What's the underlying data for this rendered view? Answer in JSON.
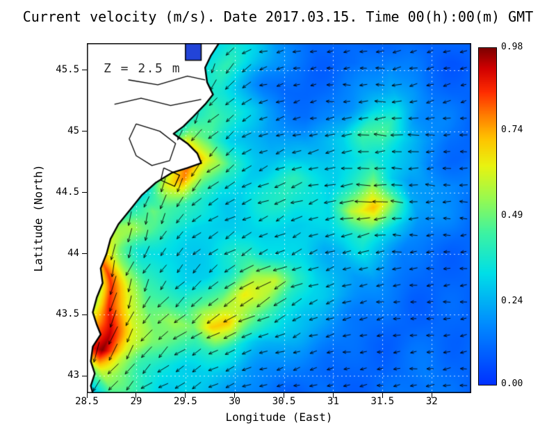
{
  "chart_data": {
    "type": "heatmap",
    "overlay": "quiver",
    "title": "Current velocity (m/s). Date 2017.03.15. Time 00(h):00(m) GMT",
    "annotation": "Z = 2.5 m",
    "xlabel": "Longitude (East)",
    "ylabel": "Latitude (North)",
    "xlim": [
      28.5,
      32.4
    ],
    "ylim": [
      42.86,
      45.72
    ],
    "grid": true,
    "grid_style": {
      "color": "#ffffff",
      "dash": [
        2,
        4
      ],
      "opacity": 0.75
    },
    "x_ticks": [
      28.5,
      29,
      29.5,
      30,
      30.5,
      31,
      31.5,
      32
    ],
    "x_tick_labels": [
      "28.5",
      "29",
      "29.5",
      "30",
      "30.5",
      "31",
      "31.5",
      "32"
    ],
    "y_ticks": [
      43,
      43.5,
      44,
      44.5,
      45,
      45.5
    ],
    "y_tick_labels": [
      "43",
      "43.5",
      "44",
      "44.5",
      "45",
      "45.5"
    ],
    "colorbar": {
      "min": 0.0,
      "max": 0.98,
      "tick_values": [
        0.0,
        0.24,
        0.49,
        0.74,
        0.98
      ],
      "tick_labels": [
        "0.00",
        "0.24",
        "0.49",
        "0.74",
        "0.98"
      ],
      "position": "right"
    },
    "colormap_stops": [
      [
        0.0,
        "#0032ff"
      ],
      [
        0.18,
        "#008cff"
      ],
      [
        0.33,
        "#00dfe8"
      ],
      [
        0.45,
        "#3df3a3"
      ],
      [
        0.55,
        "#96fa52"
      ],
      [
        0.65,
        "#e9f411"
      ],
      [
        0.73,
        "#ffc400"
      ],
      [
        0.8,
        "#ff7e00"
      ],
      [
        0.87,
        "#ff2d00"
      ],
      [
        0.94,
        "#d10000"
      ],
      [
        1.0,
        "#7f0000"
      ]
    ],
    "speed_grid": {
      "units": "m/s",
      "lon_min": 28.5,
      "lon_max": 32.4,
      "lat_top": 45.72,
      "lat_bottom": 42.86,
      "cols": 20,
      "rows": 16,
      "values": [
        [
          0.1,
          0.1,
          0.1,
          0.1,
          0.1,
          0.2,
          0.3,
          0.35,
          0.3,
          0.2,
          0.15,
          0.1,
          0.1,
          0.12,
          0.1,
          0.1,
          0.12,
          0.1,
          0.1,
          0.1
        ],
        [
          0.1,
          0.1,
          0.1,
          0.1,
          0.1,
          0.25,
          0.35,
          0.4,
          0.3,
          0.2,
          0.12,
          0.1,
          0.1,
          0.1,
          0.15,
          0.2,
          0.15,
          0.1,
          0.08,
          0.08
        ],
        [
          0.1,
          0.1,
          0.1,
          0.1,
          0.15,
          0.3,
          0.4,
          0.35,
          0.25,
          0.15,
          0.1,
          0.1,
          0.12,
          0.15,
          0.2,
          0.25,
          0.2,
          0.12,
          0.1,
          0.1
        ],
        [
          0.1,
          0.1,
          0.1,
          0.1,
          0.2,
          0.35,
          0.45,
          0.4,
          0.3,
          0.2,
          0.15,
          0.12,
          0.15,
          0.2,
          0.3,
          0.35,
          0.2,
          0.15,
          0.12,
          0.1
        ],
        [
          0.1,
          0.1,
          0.1,
          0.15,
          0.3,
          0.5,
          0.45,
          0.3,
          0.25,
          0.2,
          0.2,
          0.2,
          0.25,
          0.3,
          0.45,
          0.45,
          0.3,
          0.2,
          0.12,
          0.1
        ],
        [
          0.1,
          0.1,
          0.12,
          0.2,
          0.45,
          0.85,
          0.62,
          0.4,
          0.3,
          0.25,
          0.25,
          0.3,
          0.3,
          0.3,
          0.35,
          0.35,
          0.25,
          0.15,
          0.12,
          0.1
        ],
        [
          0.1,
          0.12,
          0.15,
          0.3,
          0.6,
          0.78,
          0.5,
          0.35,
          0.3,
          0.35,
          0.4,
          0.35,
          0.3,
          0.4,
          0.5,
          0.3,
          0.2,
          0.2,
          0.18,
          0.15
        ],
        [
          0.1,
          0.15,
          0.35,
          0.5,
          0.45,
          0.4,
          0.35,
          0.3,
          0.3,
          0.35,
          0.4,
          0.35,
          0.3,
          0.6,
          0.72,
          0.5,
          0.25,
          0.2,
          0.15,
          0.12
        ],
        [
          0.2,
          0.5,
          0.55,
          0.45,
          0.35,
          0.3,
          0.3,
          0.3,
          0.3,
          0.3,
          0.3,
          0.3,
          0.3,
          0.35,
          0.4,
          0.3,
          0.2,
          0.15,
          0.12,
          0.1
        ],
        [
          0.3,
          0.75,
          0.5,
          0.35,
          0.3,
          0.3,
          0.3,
          0.35,
          0.4,
          0.35,
          0.3,
          0.3,
          0.25,
          0.25,
          0.3,
          0.25,
          0.15,
          0.12,
          0.1,
          0.1
        ],
        [
          0.4,
          0.85,
          0.55,
          0.4,
          0.35,
          0.3,
          0.3,
          0.35,
          0.55,
          0.6,
          0.4,
          0.3,
          0.25,
          0.2,
          0.2,
          0.15,
          0.12,
          0.1,
          0.1,
          0.1
        ],
        [
          0.45,
          0.88,
          0.6,
          0.45,
          0.45,
          0.4,
          0.45,
          0.5,
          0.65,
          0.55,
          0.4,
          0.3,
          0.25,
          0.2,
          0.15,
          0.12,
          0.1,
          0.1,
          0.1,
          0.1
        ],
        [
          0.7,
          0.92,
          0.6,
          0.5,
          0.55,
          0.5,
          0.7,
          0.72,
          0.55,
          0.4,
          0.3,
          0.25,
          0.2,
          0.15,
          0.12,
          0.1,
          0.1,
          0.1,
          0.1,
          0.1
        ],
        [
          0.8,
          0.96,
          0.65,
          0.5,
          0.45,
          0.4,
          0.4,
          0.35,
          0.3,
          0.25,
          0.2,
          0.18,
          0.15,
          0.12,
          0.1,
          0.1,
          0.12,
          0.12,
          0.1,
          0.1
        ],
        [
          0.4,
          0.6,
          0.5,
          0.4,
          0.35,
          0.3,
          0.3,
          0.25,
          0.2,
          0.18,
          0.15,
          0.12,
          0.1,
          0.1,
          0.1,
          0.1,
          0.12,
          0.15,
          0.12,
          0.1
        ],
        [
          0.3,
          0.45,
          0.4,
          0.35,
          0.3,
          0.3,
          0.25,
          0.2,
          0.15,
          0.12,
          0.1,
          0.1,
          0.1,
          0.1,
          0.1,
          0.12,
          0.15,
          0.15,
          0.12,
          0.1
        ]
      ]
    },
    "direction_grid": {
      "units": "degrees_math_ccw_from_east",
      "lon_min": 28.5,
      "lon_max": 32.4,
      "lat_top": 45.72,
      "lat_bottom": 42.86,
      "cols": 10,
      "rows": 8,
      "values": [
        [
          270,
          270,
          270,
          250,
          200,
          190,
          185,
          190,
          195,
          200
        ],
        [
          270,
          270,
          265,
          230,
          200,
          190,
          185,
          185,
          190,
          195
        ],
        [
          270,
          265,
          260,
          220,
          205,
          195,
          185,
          180,
          185,
          190
        ],
        [
          265,
          260,
          245,
          215,
          205,
          200,
          190,
          175,
          180,
          185
        ],
        [
          265,
          255,
          230,
          215,
          210,
          205,
          195,
          185,
          180,
          185
        ],
        [
          260,
          250,
          225,
          215,
          210,
          205,
          200,
          190,
          185,
          185
        ],
        [
          255,
          240,
          220,
          210,
          205,
          200,
          195,
          190,
          185,
          185
        ],
        [
          230,
          220,
          210,
          200,
          195,
          190,
          190,
          185,
          185,
          185
        ]
      ]
    },
    "coastline": [
      [
        29.84,
        45.72
      ],
      [
        29.76,
        45.62
      ],
      [
        29.7,
        45.52
      ],
      [
        29.72,
        45.4
      ],
      [
        29.78,
        45.3
      ],
      [
        29.7,
        45.22
      ],
      [
        29.58,
        45.12
      ],
      [
        29.48,
        45.04
      ],
      [
        29.38,
        44.98
      ],
      [
        29.52,
        44.9
      ],
      [
        29.62,
        44.82
      ],
      [
        29.66,
        44.74
      ],
      [
        29.52,
        44.7
      ],
      [
        29.36,
        44.66
      ],
      [
        29.2,
        44.58
      ],
      [
        29.06,
        44.48
      ],
      [
        28.94,
        44.36
      ],
      [
        28.82,
        44.24
      ],
      [
        28.74,
        44.12
      ],
      [
        28.7,
        44.0
      ],
      [
        28.64,
        43.88
      ],
      [
        28.66,
        43.76
      ],
      [
        28.6,
        43.64
      ],
      [
        28.56,
        43.52
      ],
      [
        28.6,
        43.42
      ],
      [
        28.64,
        43.34
      ],
      [
        28.56,
        43.24
      ],
      [
        28.54,
        43.12
      ],
      [
        28.58,
        43.02
      ],
      [
        28.54,
        42.92
      ],
      [
        28.56,
        42.86
      ]
    ],
    "inlet": {
      "lon_min": 29.5,
      "lon_max": 29.66,
      "lat_min": 45.58,
      "lat_max": 45.72,
      "color": "#2244d8"
    },
    "land_features": [
      {
        "name": "lagoon-outline",
        "points": [
          [
            29.0,
            45.06
          ],
          [
            29.24,
            45.0
          ],
          [
            29.4,
            44.9
          ],
          [
            29.34,
            44.76
          ],
          [
            29.16,
            44.72
          ],
          [
            29.0,
            44.8
          ],
          [
            28.93,
            44.94
          ],
          [
            29.0,
            45.06
          ]
        ]
      },
      {
        "name": "lagoon-outline",
        "points": [
          [
            29.28,
            44.7
          ],
          [
            29.44,
            44.64
          ],
          [
            29.39,
            44.55
          ],
          [
            29.25,
            44.6
          ],
          [
            29.28,
            44.7
          ]
        ]
      },
      {
        "name": "river-branch",
        "points": [
          [
            28.78,
            45.22
          ],
          [
            29.05,
            45.27
          ],
          [
            29.35,
            45.21
          ],
          [
            29.66,
            45.26
          ]
        ]
      },
      {
        "name": "river-branch",
        "points": [
          [
            28.92,
            45.42
          ],
          [
            29.22,
            45.38
          ],
          [
            29.52,
            45.45
          ],
          [
            29.7,
            45.42
          ]
        ]
      }
    ],
    "land_color": "#ffffff",
    "coast_color": "#000000",
    "arrow_color": "#000000"
  }
}
